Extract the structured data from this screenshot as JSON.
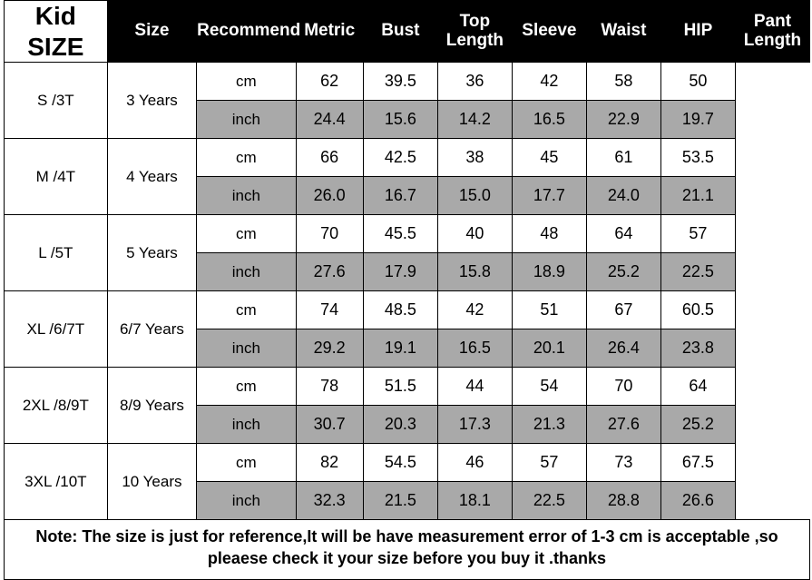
{
  "title": "Kid SIZE",
  "headers": {
    "size": "Size",
    "recommend": "Recommend",
    "metric": "Metric",
    "bust": "Bust",
    "top_length": "Top Length",
    "sleeve": "Sleeve",
    "waist": "Waist",
    "hip": "HIP",
    "pant_length": "Pant Length"
  },
  "metric_labels": {
    "cm": "cm",
    "inch": "inch"
  },
  "colors": {
    "header_bg": "#000000",
    "header_fg": "#ffffff",
    "row_cm_bg": "#ffffff",
    "row_inch_bg": "#a9a9a9",
    "border": "#000000"
  },
  "columns": [
    "bust",
    "top_length",
    "sleeve",
    "waist",
    "hip",
    "pant_length"
  ],
  "rows": [
    {
      "size": "S /3T",
      "recommend": "3 Years",
      "cm": {
        "bust": "62",
        "top_length": "39.5",
        "sleeve": "36",
        "waist": "42",
        "hip": "58",
        "pant_length": "50"
      },
      "inch": {
        "bust": "24.4",
        "top_length": "15.6",
        "sleeve": "14.2",
        "waist": "16.5",
        "hip": "22.9",
        "pant_length": "19.7"
      }
    },
    {
      "size": "M /4T",
      "recommend": "4 Years",
      "cm": {
        "bust": "66",
        "top_length": "42.5",
        "sleeve": "38",
        "waist": "45",
        "hip": "61",
        "pant_length": "53.5"
      },
      "inch": {
        "bust": "26.0",
        "top_length": "16.7",
        "sleeve": "15.0",
        "waist": "17.7",
        "hip": "24.0",
        "pant_length": "21.1"
      }
    },
    {
      "size": "L /5T",
      "recommend": "5 Years",
      "cm": {
        "bust": "70",
        "top_length": "45.5",
        "sleeve": "40",
        "waist": "48",
        "hip": "64",
        "pant_length": "57"
      },
      "inch": {
        "bust": "27.6",
        "top_length": "17.9",
        "sleeve": "15.8",
        "waist": "18.9",
        "hip": "25.2",
        "pant_length": "22.5"
      }
    },
    {
      "size": "XL /6/7T",
      "recommend": "6/7 Years",
      "cm": {
        "bust": "74",
        "top_length": "48.5",
        "sleeve": "42",
        "waist": "51",
        "hip": "67",
        "pant_length": "60.5"
      },
      "inch": {
        "bust": "29.2",
        "top_length": "19.1",
        "sleeve": "16.5",
        "waist": "20.1",
        "hip": "26.4",
        "pant_length": "23.8"
      }
    },
    {
      "size": "2XL /8/9T",
      "recommend": "8/9 Years",
      "cm": {
        "bust": "78",
        "top_length": "51.5",
        "sleeve": "44",
        "waist": "54",
        "hip": "70",
        "pant_length": "64"
      },
      "inch": {
        "bust": "30.7",
        "top_length": "20.3",
        "sleeve": "17.3",
        "waist": "21.3",
        "hip": "27.6",
        "pant_length": "25.2"
      }
    },
    {
      "size": "3XL /10T",
      "recommend": "10 Years",
      "cm": {
        "bust": "82",
        "top_length": "54.5",
        "sleeve": "46",
        "waist": "57",
        "hip": "73",
        "pant_length": "67.5"
      },
      "inch": {
        "bust": "32.3",
        "top_length": "21.5",
        "sleeve": "18.1",
        "waist": "22.5",
        "hip": "28.8",
        "pant_length": "26.6"
      }
    }
  ],
  "note": "Note: The size is just for reference,It will be have measurement error of 1-3 cm is acceptable ,so pleaese check it your size before you buy it .thanks"
}
